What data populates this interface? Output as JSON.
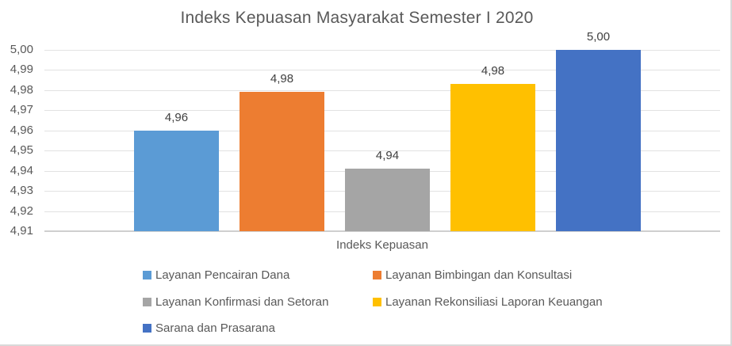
{
  "page": {
    "background_color": "#ffffff",
    "frame_border_color": "#d9d9d9"
  },
  "chart_data": {
    "type": "bar",
    "title": "Indeks Kepuasan Masyarakat Semester I 2020",
    "xlabel": "Indeks Kepuasan",
    "ylabel": "",
    "categories": [
      "Indeks Kepuasan"
    ],
    "series": [
      {
        "name": "Layanan Pencairan Dana",
        "value": 4.96,
        "data_label": "4,96",
        "color": "#5B9BD5"
      },
      {
        "name": "Layanan Bimbingan dan Konsultasi",
        "value": 4.98,
        "data_label": "4,98",
        "color": "#ED7D31"
      },
      {
        "name": "Layanan Konfirmasi dan Setoran",
        "value": 4.94,
        "data_label": "4,94",
        "color": "#A5A5A5"
      },
      {
        "name": "Layanan Rekonsiliasi Laporan Keuangan",
        "value": 4.98,
        "data_label": "4,98",
        "color": "#FFC000"
      },
      {
        "name": "Sarana dan Prasarana",
        "value": 5.0,
        "data_label": "5,00",
        "color": "#4472C4"
      }
    ],
    "bar_tops_read_from_gridlines": [
      4.96,
      4.979,
      4.941,
      4.983,
      5.0
    ],
    "y_axis": {
      "min": 4.91,
      "max": 5.0,
      "step": 0.01,
      "tick_labels": [
        "4,91",
        "4,92",
        "4,93",
        "4,94",
        "4,95",
        "4,96",
        "4,97",
        "4,98",
        "4,99",
        "5,00"
      ]
    },
    "grid": true,
    "gridline_color": "#e2e2e2",
    "axis_line_color": "#cfcfcf",
    "text_color": "#595959",
    "legend_position": "bottom"
  }
}
